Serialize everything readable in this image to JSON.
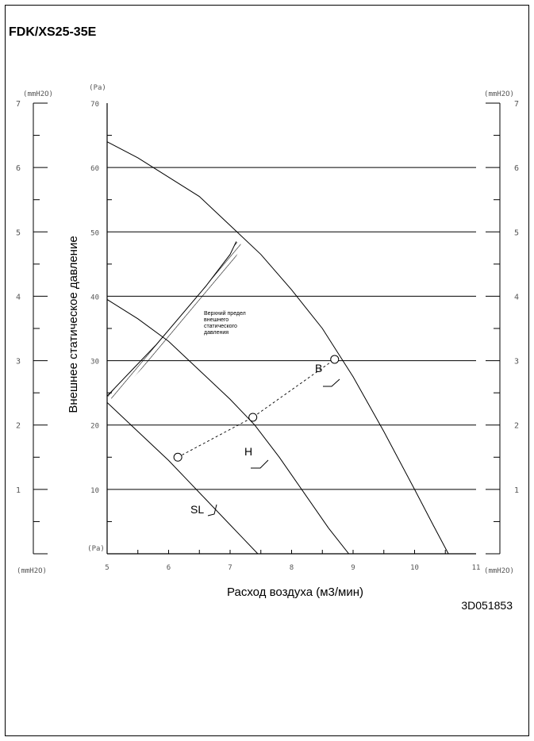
{
  "title": "FDK/XS25-35E",
  "doc_code": "3D051853",
  "chart_data": {
    "type": "line",
    "xlabel": "Расход воздуха (м3/мин)",
    "ylabel": "Внешнее статическое давление",
    "xlim": [
      5,
      11
    ],
    "ylim": [
      0,
      70
    ],
    "x_ticks": [
      "5",
      "6",
      "7",
      "8",
      "9",
      "10",
      "11"
    ],
    "y_ticks_pa": [
      "10",
      "20",
      "30",
      "40",
      "50",
      "60",
      "70"
    ],
    "y_ticks_mmh2o": [
      "1",
      "2",
      "3",
      "4",
      "5",
      "6",
      "7"
    ],
    "unit_pa_top": "(Pa)",
    "unit_pa_bottom": "(Pa)",
    "unit_mm_left_top": "(mmH2O)",
    "unit_mm_right_top": "(mmH2O)",
    "unit_mm_left_bottom": "(mmH2O)",
    "unit_mm_right_bottom": "(mmH2O)",
    "grid_lines_pa": [
      10,
      20,
      30,
      40,
      50,
      60
    ],
    "series": [
      {
        "name": "B",
        "x": [
          5.0,
          5.5,
          6.0,
          6.5,
          7.0,
          7.5,
          8.0,
          8.5,
          9.0,
          9.5,
          10.0,
          10.3,
          10.55
        ],
        "y": [
          64,
          61.5,
          58.5,
          55.5,
          51,
          46.5,
          41,
          35,
          27.5,
          19,
          10,
          4.5,
          0
        ]
      },
      {
        "name": "H",
        "x": [
          5.0,
          5.5,
          6.0,
          6.5,
          7.0,
          7.4,
          7.8,
          8.2,
          8.6,
          8.93
        ],
        "y": [
          39.5,
          36.5,
          33,
          28.5,
          24,
          20,
          15,
          9.5,
          4,
          0
        ]
      },
      {
        "name": "SL",
        "x": [
          5.0,
          5.5,
          6.0,
          6.3,
          6.6,
          6.9,
          7.2,
          7.45
        ],
        "y": [
          23.5,
          19,
          14.5,
          11.5,
          8.5,
          5.5,
          2.5,
          0
        ]
      }
    ],
    "operating_points": [
      {
        "x": 6.15,
        "y": 15
      },
      {
        "x": 7.37,
        "y": 21.2
      },
      {
        "x": 8.7,
        "y": 30.2
      }
    ],
    "upper_limit_boundary": {
      "x": [
        5.0,
        5.4,
        5.8,
        6.2,
        6.6,
        7.0,
        7.1
      ],
      "y": [
        24.5,
        28.5,
        32.5,
        37,
        41.5,
        46.5,
        48.5
      ]
    },
    "annotation": "Верхний предел внешнего статического давления"
  }
}
